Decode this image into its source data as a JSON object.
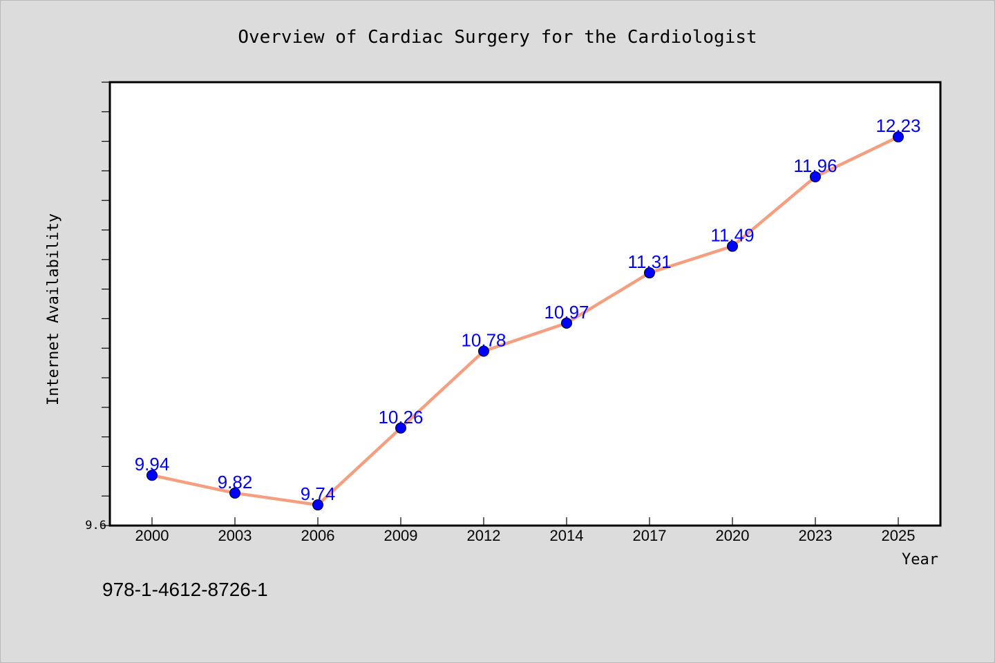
{
  "chart_data": {
    "type": "line",
    "title": "Overview of Cardiac Surgery for the Cardiologist",
    "xlabel": "Year",
    "ylabel": "Internet Availability",
    "categories": [
      "2000",
      "2003",
      "2006",
      "2009",
      "2012",
      "2014",
      "2017",
      "2020",
      "2023",
      "2025"
    ],
    "series": [
      {
        "values": [
          9.94,
          9.82,
          9.74,
          10.26,
          10.78,
          10.97,
          11.31,
          11.49,
          11.96,
          12.23
        ],
        "labels": [
          "9.94",
          "9.82",
          "9.74",
          "10.26",
          "10.78",
          "10.97",
          "11.31",
          "11.49",
          "11.96",
          "12.23"
        ],
        "line_color": "#f4a080",
        "marker_color": "#0000ff",
        "label_color": "#0000ff"
      }
    ],
    "ylim": [
      9.6,
      12.6
    ],
    "ytick_labels": [
      "9.6"
    ],
    "grid": false,
    "legend": "none"
  },
  "footer": {
    "isbn": "978-1-4612-8726-1"
  },
  "colors": {
    "background": "#dcdcdc",
    "plot_background": "#ffffff",
    "axis": "#000000"
  }
}
